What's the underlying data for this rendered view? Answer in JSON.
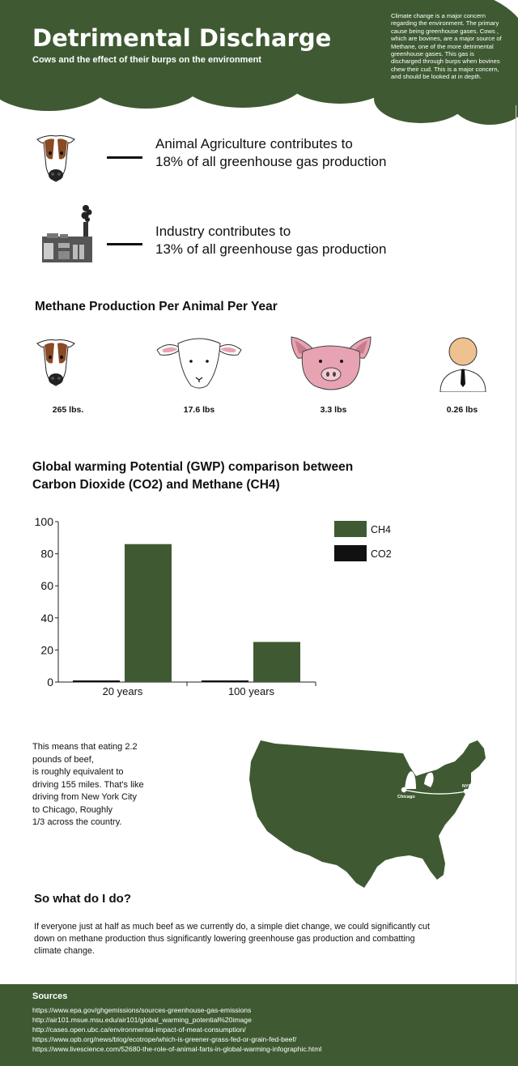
{
  "header": {
    "title": "Detrimental Discharge",
    "subtitle": "Cows and the effect of their burps on the environment",
    "intro": "Climate change is a major concern regarding the environment. The primary cause being greenhouse gases. Cows , which are bovines, are a major source of Methane, one of the more detrimental greenhouse gases. This gas is discharged through burps when bovines chew their cud. This is a major concern, and should be looked at in depth."
  },
  "facts": [
    {
      "line1": "Animal Agriculture contributes to",
      "line2": "18% of all greenhouse gas production",
      "icon": "cow-face-icon"
    },
    {
      "line1": "Industry contributes to",
      "line2": "13% of all greenhouse gas production",
      "icon": "factory-icon"
    }
  ],
  "methane": {
    "title": "Methane Production Per Animal Per Year",
    "animals": [
      {
        "icon": "cow-face-icon",
        "value": "265 lbs."
      },
      {
        "icon": "sheep-face-icon",
        "value": "17.6 lbs"
      },
      {
        "icon": "pig-face-icon",
        "value": "3.3 lbs"
      },
      {
        "icon": "person-icon",
        "value": "0.26 lbs"
      }
    ]
  },
  "chart_data": {
    "type": "bar",
    "title_line1": "Global warming Potential (GWP) comparison between",
    "title_line2": "Carbon Dioxide (CO2) and Methane (CH4)",
    "categories": [
      "20 years",
      "100 years"
    ],
    "series": [
      {
        "name": "CO2",
        "values": [
          1,
          1
        ],
        "color": "#111111"
      },
      {
        "name": "CH4",
        "values": [
          86,
          25
        ],
        "color": "#3f5a32"
      }
    ],
    "ylim": [
      0,
      100
    ],
    "yticks": [
      0,
      20,
      40,
      60,
      80,
      100
    ],
    "legend_order": [
      "CH4",
      "CO2"
    ],
    "legend_position": "top-right",
    "grid": false
  },
  "beef": {
    "lines": [
      "This means that eating 2.2",
      "pounds of beef,",
      "is roughly equivalent to",
      "driving 155 miles.  That's like",
      "driving from New York City",
      "to Chicago, Roughly",
      "1/3 across the country."
    ],
    "map_label_chicago": "Chicago",
    "map_label_nyc": "NYC"
  },
  "action": {
    "title": "So what do I do?",
    "text": "If everyone just at half as much beef as we currently do,  a simple diet change, we could significantly cut down on methane production thus significantly lowering greenhouse gas production and combatting climate change."
  },
  "sources": {
    "title": "Sources",
    "items": [
      "https://www.epa.gov/ghgemissions/sources-greenhouse-gas-emissions",
      "http://air101.msue.msu.edu/air101/global_warming_potential%20image",
      "http://cases.open.ubc.ca/environmental-impact-of-meat-consumption/",
      "https://www.opb.org/news/blog/ecotrope/which-is-greener-grass-fed-or-grain-fed-beef/",
      "https://www.livescience.com/52680-the-role-of-animal-farts-in-global-warming-infographic.html"
    ]
  },
  "colors": {
    "brand_green": "#3f5a32",
    "cow_brown": "#8a4a24",
    "pig_pink": "#e8a3b3",
    "skin": "#f0c190"
  }
}
